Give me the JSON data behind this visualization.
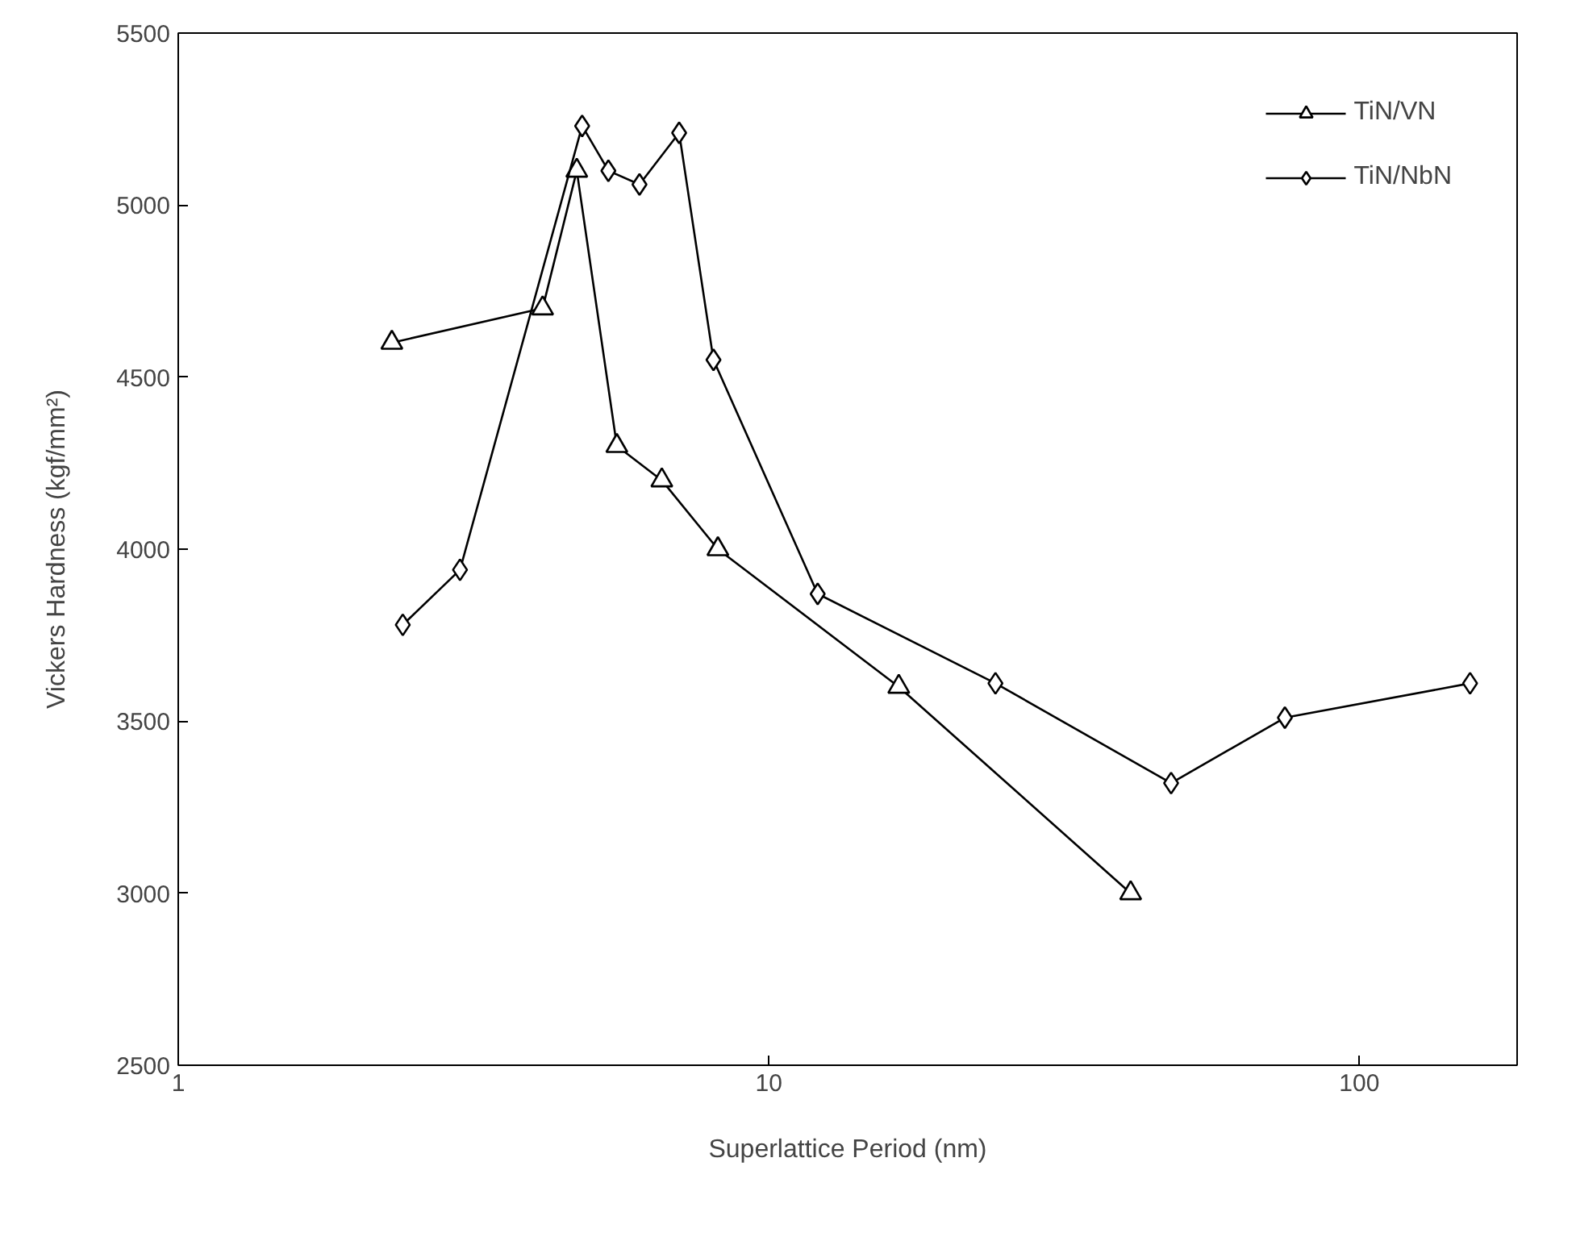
{
  "chart_data": {
    "type": "line",
    "xlabel": "Superlattice Period (nm)",
    "ylabel": "Vickers Hardness (kgf/mm²)",
    "log": "x",
    "xlim": [
      1,
      185
    ],
    "xticks": [
      1,
      10,
      100
    ],
    "ylim": [
      2500,
      5500
    ],
    "yticks": [
      2500,
      3000,
      3500,
      4000,
      4500,
      5000,
      5500
    ],
    "grid": false,
    "legend": "top right",
    "line_style": "solid",
    "series": [
      {
        "name": "TiN/VN",
        "color": "#000000",
        "marker": "triangle",
        "x": [
          2.3,
          4.14,
          4.73,
          5.53,
          6.59,
          8.2,
          16.6,
          41
        ],
        "values": [
          4600,
          4700,
          5100,
          4300,
          4200,
          4000,
          3600,
          3000
        ]
      },
      {
        "name": "TiN/NbN",
        "color": "#000000",
        "marker": "diamond",
        "x": [
          2.4,
          3.0,
          4.83,
          5.35,
          6.04,
          7.05,
          8.06,
          12.1,
          24.2,
          48,
          74.8,
          154
        ],
        "values": [
          3780,
          3940,
          5230,
          5100,
          5060,
          5210,
          4550,
          3870,
          3610,
          3320,
          3510,
          3610
        ]
      }
    ]
  }
}
